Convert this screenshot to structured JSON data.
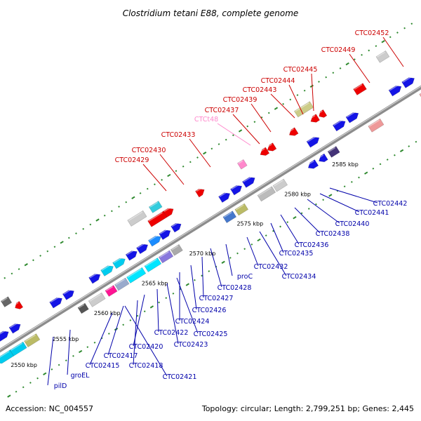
{
  "title": "Clostridium tetani E88, complete genome",
  "footer": {
    "accession": "Accession: NC_004557",
    "summary": "Topology: circular; Length: 2,799,251 bp; Genes: 2,445"
  },
  "colors": {
    "backbone": "#8c8c8c",
    "tick_dot": "#2f8a2f",
    "label_red": "#cc0000",
    "label_pink": "#ff88cc",
    "label_blue": "#0000aa",
    "gene_blue": "#1414e6",
    "gene_red": "#ee0000"
  },
  "scale": {
    "kbp_labels": [
      "2550 kbp",
      "2555 kbp",
      "2560 kbp",
      "2565 kbp",
      "2570 kbp",
      "2575 kbp",
      "2580 kbp",
      "2585 kbp"
    ]
  },
  "labels_top": [
    {
      "text": "CTC02452",
      "color": "red"
    },
    {
      "text": "CTC02449",
      "color": "red"
    },
    {
      "text": "CTC02445",
      "color": "red"
    },
    {
      "text": "CTC02444",
      "color": "red"
    },
    {
      "text": "CTC02443",
      "color": "red"
    },
    {
      "text": "CTC02439",
      "color": "red"
    },
    {
      "text": "CTC02437",
      "color": "red"
    },
    {
      "text": "CTCt48",
      "color": "pink"
    },
    {
      "text": "CTC02433",
      "color": "red"
    },
    {
      "text": "CTC02430",
      "color": "red"
    },
    {
      "text": "CTC02429",
      "color": "red"
    }
  ],
  "labels_bottom": [
    {
      "text": "CTC02442"
    },
    {
      "text": "CTC02441"
    },
    {
      "text": "CTC02440"
    },
    {
      "text": "CTC02438"
    },
    {
      "text": "CTC02436"
    },
    {
      "text": "CTC02435"
    },
    {
      "text": "CTC02434"
    },
    {
      "text": "CTC02432"
    },
    {
      "text": "proC"
    },
    {
      "text": "CTC02428"
    },
    {
      "text": "CTC02427"
    },
    {
      "text": "CTC02426"
    },
    {
      "text": "CTC02424"
    },
    {
      "text": "CTC02425"
    },
    {
      "text": "CTC02423"
    },
    {
      "text": "CTC02422"
    },
    {
      "text": "CTC02420"
    },
    {
      "text": "CTC02418"
    },
    {
      "text": "CTC02417"
    },
    {
      "text": "CTC02415"
    },
    {
      "text": "CTC02421"
    },
    {
      "text": "groEL"
    },
    {
      "text": "pilD"
    }
  ]
}
